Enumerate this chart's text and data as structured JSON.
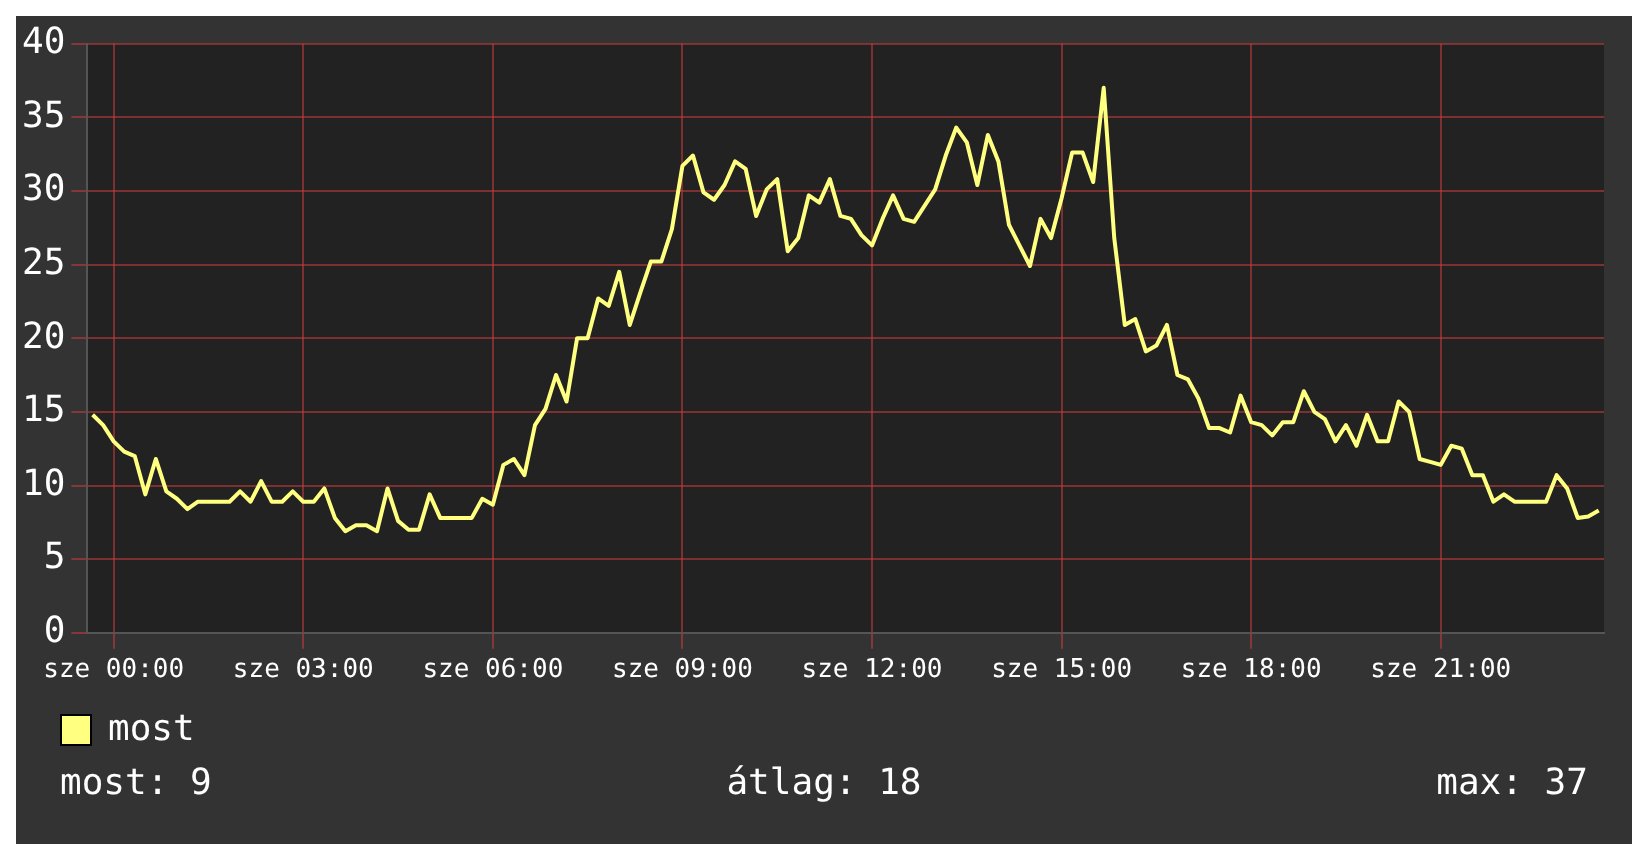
{
  "chart_data": {
    "type": "line",
    "categories": [
      null,
      null,
      "sze 00:00",
      null,
      null,
      null,
      null,
      null,
      null,
      null,
      null,
      null,
      null,
      null,
      null,
      null,
      null,
      null,
      null,
      null,
      "sze 03:00",
      null,
      null,
      null,
      null,
      null,
      null,
      null,
      null,
      null,
      null,
      null,
      null,
      null,
      null,
      null,
      null,
      null,
      "sze 06:00",
      null,
      null,
      null,
      null,
      null,
      null,
      null,
      null,
      null,
      null,
      null,
      null,
      null,
      null,
      null,
      null,
      null,
      "sze 09:00",
      null,
      null,
      null,
      null,
      null,
      null,
      null,
      null,
      null,
      null,
      null,
      null,
      null,
      null,
      null,
      null,
      null,
      "sze 12:00",
      null,
      null,
      null,
      null,
      null,
      null,
      null,
      null,
      null,
      null,
      null,
      null,
      null,
      null,
      null,
      null,
      null,
      "sze 15:00",
      null,
      null,
      null,
      null,
      null,
      null,
      null,
      null,
      null,
      null,
      null,
      null,
      null,
      null,
      null,
      null,
      null,
      "sze 18:00",
      null,
      null,
      null,
      null,
      null,
      null,
      null,
      null,
      null,
      null,
      null,
      null,
      null,
      null,
      null,
      null,
      null,
      "sze 21:00",
      null,
      null,
      null,
      null,
      null,
      null,
      null,
      null,
      null,
      null,
      null,
      null,
      null,
      null,
      null
    ],
    "series": [
      {
        "name": "most",
        "color": "#ffff80",
        "values": [
          14.8,
          14.1,
          13,
          12.3,
          12,
          9.4,
          11.8,
          9.6,
          9.1,
          8.4,
          8.9,
          8.9,
          8.9,
          8.9,
          9.6,
          8.9,
          10.3,
          8.9,
          8.9,
          9.6,
          8.9,
          8.9,
          9.8,
          7.8,
          6.9,
          7.3,
          7.3,
          6.9,
          9.8,
          7.6,
          7,
          7,
          9.4,
          7.8,
          7.8,
          7.8,
          7.8,
          9.1,
          8.7,
          11.4,
          11.8,
          10.7,
          14.1,
          15.2,
          17.5,
          15.7,
          20,
          20,
          22.7,
          22.2,
          24.5,
          20.9,
          23.1,
          25.2,
          25.2,
          27.4,
          31.7,
          32.4,
          29.9,
          29.4,
          30.4,
          32,
          31.5,
          28.3,
          30.1,
          30.8,
          25.9,
          26.8,
          29.7,
          29.2,
          30.8,
          28.3,
          28.1,
          27,
          26.3,
          28.1,
          29.7,
          28.1,
          27.9,
          29,
          30.1,
          32.4,
          34.3,
          33.3,
          30.4,
          33.8,
          32,
          27.7,
          26.3,
          24.9,
          28.1,
          26.8,
          29.5,
          32.6,
          32.6,
          30.6,
          37,
          26.8,
          20.9,
          21.3,
          19.1,
          19.5,
          20.9,
          17.5,
          17.2,
          15.9,
          13.9,
          13.9,
          13.6,
          16.1,
          14.3,
          14.1,
          13.4,
          14.3,
          14.3,
          16.4,
          15,
          14.5,
          13,
          14.1,
          12.7,
          14.8,
          13,
          13,
          15.7,
          15,
          11.8,
          11.6,
          11.4,
          12.7,
          12.5,
          10.7,
          10.7,
          8.9,
          9.4,
          8.9,
          8.9,
          8.9,
          8.9,
          10.7,
          9.8,
          7.8,
          7.9,
          8.3
        ]
      }
    ],
    "ylim": [
      0,
      40
    ],
    "yticks": [
      0,
      5,
      10,
      15,
      20,
      25,
      30,
      35,
      40
    ],
    "grid": true,
    "legend": "bottom left",
    "marker": "none",
    "line_style": "solid",
    "annotations": [
      "most: 9",
      "átlag: 18",
      "max: 37"
    ]
  }
}
